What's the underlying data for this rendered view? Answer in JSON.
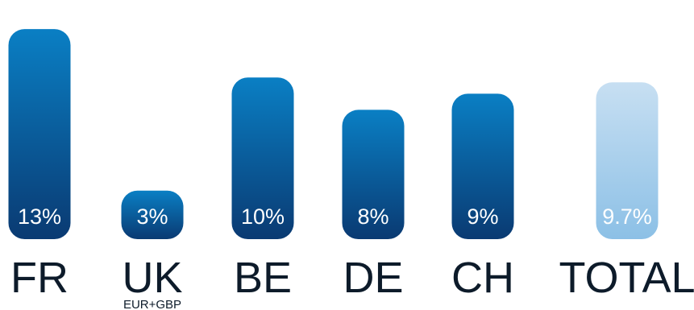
{
  "chart_data": {
    "type": "bar",
    "title": "",
    "xlabel": "",
    "ylabel": "",
    "categories": [
      "FR",
      "UK",
      "BE",
      "DE",
      "CH",
      "TOTAL"
    ],
    "category_sublabels": [
      "",
      "EUR+GBP",
      "",
      "",
      "",
      ""
    ],
    "values": [
      13,
      3,
      10,
      8,
      9,
      9.7
    ],
    "value_labels": [
      "13%",
      "3%",
      "10%",
      "8%",
      "9%",
      "9.7%"
    ],
    "ylim": [
      0,
      14
    ],
    "grid": false,
    "colors": {
      "bar_top": "#0a7fc4",
      "bar_bottom": "#0a3a72",
      "total_top": "#c7dff2",
      "total_bottom": "#8cc0e6",
      "value_text": "#ffffff",
      "category_text": "#0d1b2a"
    }
  }
}
